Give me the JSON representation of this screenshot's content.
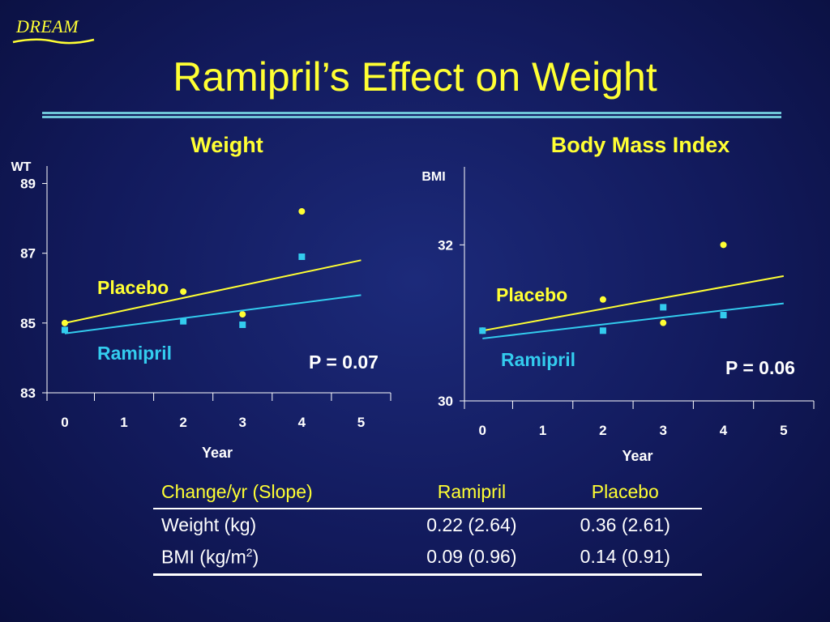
{
  "logo": {
    "text": "DREAM",
    "color": "#ffff33"
  },
  "title": "Ramipril’s Effect on Weight",
  "colors": {
    "placebo": "#ffff33",
    "ramipril": "#33ccee",
    "axis": "#ffffff",
    "background": "#121a5c"
  },
  "chart_data": [
    {
      "type": "scatter",
      "title": "Weight",
      "ylabel": "WT",
      "xlabel": "Year",
      "x_ticks": [
        0,
        1,
        2,
        3,
        4,
        5
      ],
      "y_ticks": [
        83,
        85,
        87,
        89
      ],
      "xlim": [
        -0.3,
        5.5
      ],
      "ylim": [
        83,
        89.5
      ],
      "annotation": "P = 0.07",
      "series": [
        {
          "name": "Placebo",
          "marker": "circle",
          "points": [
            [
              0,
              85.0
            ],
            [
              2,
              85.9
            ],
            [
              3,
              85.25
            ],
            [
              4,
              88.2
            ]
          ],
          "trend": [
            [
              0,
              85.0
            ],
            [
              5,
              86.8
            ]
          ]
        },
        {
          "name": "Ramipril",
          "marker": "square",
          "points": [
            [
              0,
              84.8
            ],
            [
              2,
              85.05
            ],
            [
              3,
              84.95
            ],
            [
              4,
              86.9
            ]
          ],
          "trend": [
            [
              0,
              84.7
            ],
            [
              5,
              85.8
            ]
          ]
        }
      ]
    },
    {
      "type": "scatter",
      "title": "Body Mass Index",
      "ylabel": "BMI",
      "xlabel": "Year",
      "x_ticks": [
        0,
        1,
        2,
        3,
        4,
        5
      ],
      "y_ticks": [
        30,
        32
      ],
      "xlim": [
        -0.3,
        5.5
      ],
      "ylim": [
        30,
        33
      ],
      "annotation": "P = 0.06",
      "series": [
        {
          "name": "Placebo",
          "marker": "circle",
          "points": [
            [
              0,
              30.9
            ],
            [
              2,
              31.3
            ],
            [
              3,
              31.0
            ],
            [
              4,
              32.0
            ]
          ],
          "trend": [
            [
              0,
              30.9
            ],
            [
              5,
              31.6
            ]
          ]
        },
        {
          "name": "Ramipril",
          "marker": "square",
          "points": [
            [
              0,
              30.9
            ],
            [
              2,
              30.9
            ],
            [
              3,
              31.2
            ],
            [
              4,
              31.1
            ]
          ],
          "trend": [
            [
              0,
              30.8
            ],
            [
              5,
              31.25
            ]
          ]
        }
      ]
    }
  ],
  "table": {
    "headers": [
      "Change/yr (Slope)",
      "Ramipril",
      "Placebo"
    ],
    "rows": [
      {
        "label": "Weight (kg)",
        "label_sup": "",
        "label_suffix": "",
        "ramipril": "0.22 (2.64)",
        "placebo": "0.36 (2.61)"
      },
      {
        "label": "BMI (kg/m",
        "label_sup": "2",
        "label_suffix": ")",
        "ramipril": "0.09 (0.96)",
        "placebo": "0.14 (0.91)"
      }
    ]
  }
}
